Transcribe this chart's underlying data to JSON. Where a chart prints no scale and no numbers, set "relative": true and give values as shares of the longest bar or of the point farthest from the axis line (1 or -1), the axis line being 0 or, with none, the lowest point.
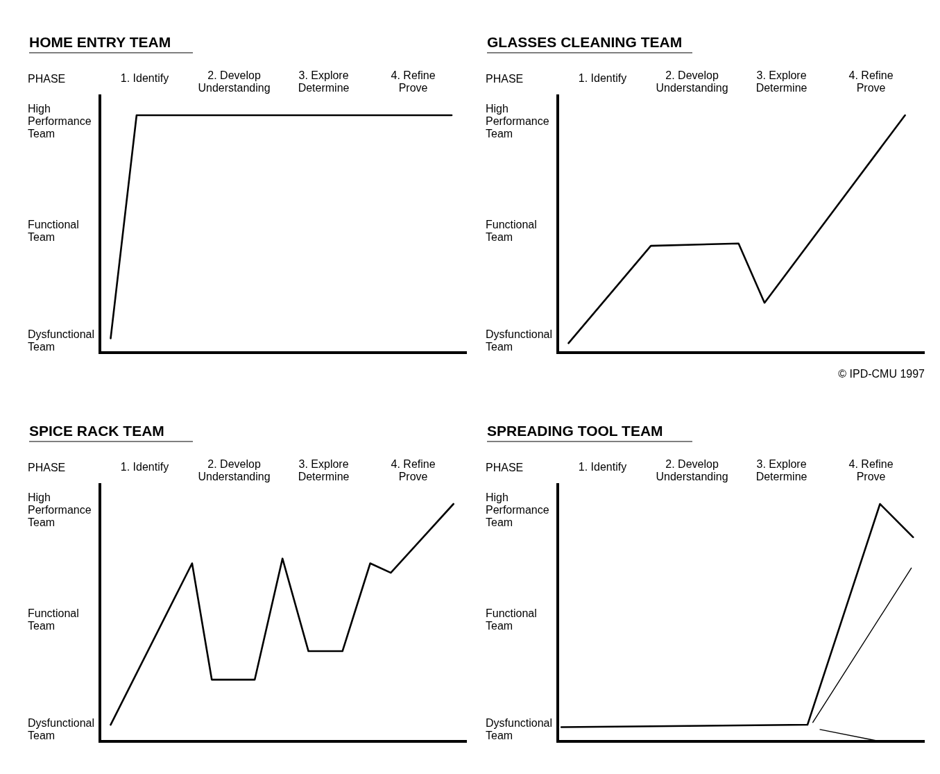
{
  "chart_data": [
    {
      "type": "line",
      "relative": true,
      "title": "HOME ENTRY TEAM",
      "xlabel": "PHASE",
      "xlim": [
        0.5,
        4.6
      ],
      "xticks": [
        {
          "value": 1,
          "label": "1. Identify"
        },
        {
          "value": 2,
          "label": "2. Develop Understanding"
        },
        {
          "value": 3,
          "label": "3. Explore Determine"
        },
        {
          "value": 4,
          "label": "4. Refine Prove"
        }
      ],
      "annotations": [
        "Dysfunctional Team",
        "Functional Team",
        "High Performance Team"
      ],
      "series": [
        {
          "color": "#000000",
          "x": [
            0.62,
            0.91,
            4.43
          ],
          "values": [
            0.06,
            1,
            1
          ]
        }
      ]
    },
    {
      "type": "line",
      "relative": true,
      "title": "GLASSES CLEANING TEAM",
      "xlabel": "PHASE",
      "xlim": [
        0.5,
        4.6
      ],
      "xticks": [
        {
          "value": 1,
          "label": "1. Identify"
        },
        {
          "value": 2,
          "label": "2. Develop Understanding"
        },
        {
          "value": 3,
          "label": "3. Explore Determine"
        },
        {
          "value": 4,
          "label": "4. Refine Prove"
        }
      ],
      "annotations": [
        "Dysfunctional Team",
        "Functional Team",
        "High Performance Team",
        "© IPD-CMU  1997"
      ],
      "series": [
        {
          "color": "#000000",
          "x": [
            0.62,
            1.54,
            2.52,
            2.81,
            4.38
          ],
          "values": [
            0.04,
            0.45,
            0.46,
            0.21,
            1
          ]
        }
      ]
    },
    {
      "type": "line",
      "relative": true,
      "title": "SPICE RACK TEAM",
      "xlabel": "PHASE",
      "xlim": [
        0.5,
        4.6
      ],
      "xticks": [
        {
          "value": 1,
          "label": "1. Identify"
        },
        {
          "value": 2,
          "label": "2. Develop Understanding"
        },
        {
          "value": 3,
          "label": "3. Explore Determine"
        },
        {
          "value": 4,
          "label": "4. Refine Prove"
        }
      ],
      "annotations": [
        "Dysfunctional Team",
        "Functional Team",
        "High Performance Team"
      ],
      "series": [
        {
          "color": "#000000",
          "x": [
            0.62,
            1.53,
            1.75,
            2.23,
            2.54,
            2.83,
            3.21,
            3.52,
            3.75,
            4.45
          ],
          "values": [
            0.07,
            0.75,
            0.26,
            0.26,
            0.77,
            0.38,
            0.38,
            0.75,
            0.71,
            1
          ]
        }
      ]
    },
    {
      "type": "line",
      "relative": true,
      "title": "SPREADING TOOL TEAM",
      "xlabel": "PHASE",
      "xlim": [
        0.5,
        4.6
      ],
      "xticks": [
        {
          "value": 1,
          "label": "1. Identify"
        },
        {
          "value": 2,
          "label": "2. Develop Understanding"
        },
        {
          "value": 3,
          "label": "3. Explore Determine"
        },
        {
          "value": 4,
          "label": "4. Refine Prove"
        }
      ],
      "annotations": [
        "Dysfunctional Team",
        "Functional Team",
        "High Performance Team"
      ],
      "series": [
        {
          "color": "#000000",
          "x": [
            0.54,
            3.29,
            4.1,
            4.47
          ],
          "values": [
            0.06,
            0.07,
            1,
            0.86
          ]
        },
        {
          "color": "#000000",
          "x": [
            3.35,
            4.45
          ],
          "values": [
            0.08,
            0.73
          ]
        },
        {
          "color": "#000000",
          "x": [
            3.43,
            4.1
          ],
          "values": [
            0.05,
            0
          ]
        }
      ]
    }
  ]
}
